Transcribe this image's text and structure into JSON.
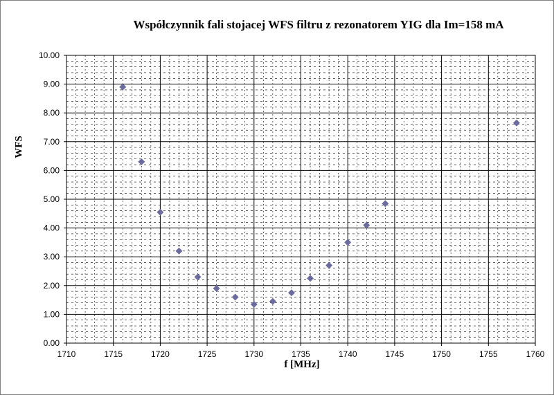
{
  "chart_data": {
    "type": "scatter",
    "title": "Współczynnik fali stojacej WFS filtru z rezonatorem YIG dla Im=158 mA",
    "xlabel": "f [MHz]",
    "ylabel": "WFS",
    "xlim": [
      1710,
      1760
    ],
    "ylim": [
      0,
      10
    ],
    "x_ticks": [
      "1710",
      "1715",
      "1720",
      "1725",
      "1730",
      "1735",
      "1740",
      "1745",
      "1750",
      "1755",
      "1760"
    ],
    "y_ticks": [
      "0.00",
      "1.00",
      "2.00",
      "3.00",
      "4.00",
      "5.00",
      "6.00",
      "7.00",
      "8.00",
      "9.00",
      "10.00"
    ],
    "grid": true,
    "legend": "none",
    "marker_color": "#6b6b9e",
    "series": [
      {
        "x": [
          1716,
          1718,
          1720,
          1722,
          1724,
          1726,
          1728,
          1730,
          1732,
          1734,
          1736,
          1738,
          1740,
          1742,
          1744,
          1758
        ],
        "y": [
          8.9,
          6.3,
          4.55,
          3.2,
          2.3,
          1.9,
          1.6,
          1.35,
          1.45,
          1.75,
          2.25,
          2.7,
          3.5,
          4.1,
          4.85,
          7.65
        ]
      }
    ]
  }
}
